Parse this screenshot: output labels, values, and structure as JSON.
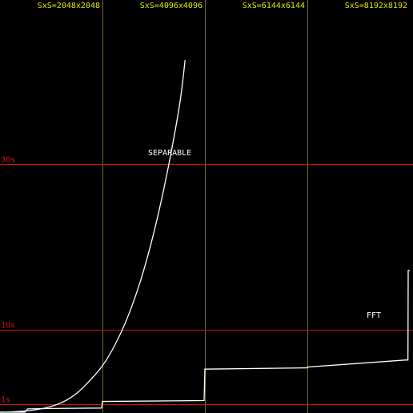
{
  "chart_data": {
    "type": "line",
    "title": "",
    "xlabel": "",
    "ylabel": "",
    "xlim": [
      0,
      8192
    ],
    "ylim": [
      0,
      38
    ],
    "grid": true,
    "colors": {
      "background": "#000000",
      "vertical_grid": "#6b6b32",
      "horizontal_grid": "#cc1111",
      "x_tick_label": "#e6e600",
      "y_tick_label": "#cc1111",
      "series": "#ffffff"
    },
    "x_ticks": [
      {
        "value": 2048,
        "label": "SxS=2048x2048"
      },
      {
        "value": 4096,
        "label": "SxS=4096x4096"
      },
      {
        "value": 6144,
        "label": "SxS=6144x6144"
      },
      {
        "value": 8192,
        "label": "SxS=8192x8192"
      }
    ],
    "y_ticks": [
      {
        "value": 1,
        "label": "1s"
      },
      {
        "value": 10,
        "label": "10s"
      },
      {
        "value": 30,
        "label": "30s"
      }
    ],
    "series": [
      {
        "name": "SEPARABLE",
        "points": [
          [
            0,
            0.0
          ],
          [
            256,
            0.05
          ],
          [
            512,
            0.15
          ],
          [
            768,
            0.35
          ],
          [
            1024,
            0.7
          ],
          [
            1280,
            1.3
          ],
          [
            1536,
            2.3
          ],
          [
            1792,
            3.8
          ],
          [
            2048,
            5.6
          ],
          [
            2304,
            8.2
          ],
          [
            2560,
            11.6
          ],
          [
            2816,
            16.0
          ],
          [
            3072,
            21.6
          ],
          [
            3328,
            28.5
          ],
          [
            3584,
            36.9
          ],
          [
            3700,
            42.5
          ]
        ]
      },
      {
        "name": "FFT",
        "points": [
          [
            0,
            0.0
          ],
          [
            500,
            0.0
          ],
          [
            550,
            0.4
          ],
          [
            1000,
            0.45
          ],
          [
            2030,
            0.5
          ],
          [
            2048,
            1.3
          ],
          [
            4080,
            1.4
          ],
          [
            4096,
            5.2
          ],
          [
            6140,
            5.35
          ],
          [
            6144,
            5.45
          ],
          [
            8100,
            6.3
          ],
          [
            8155,
            6.3
          ],
          [
            8160,
            17.1
          ],
          [
            8192,
            17.1
          ]
        ]
      }
    ]
  }
}
